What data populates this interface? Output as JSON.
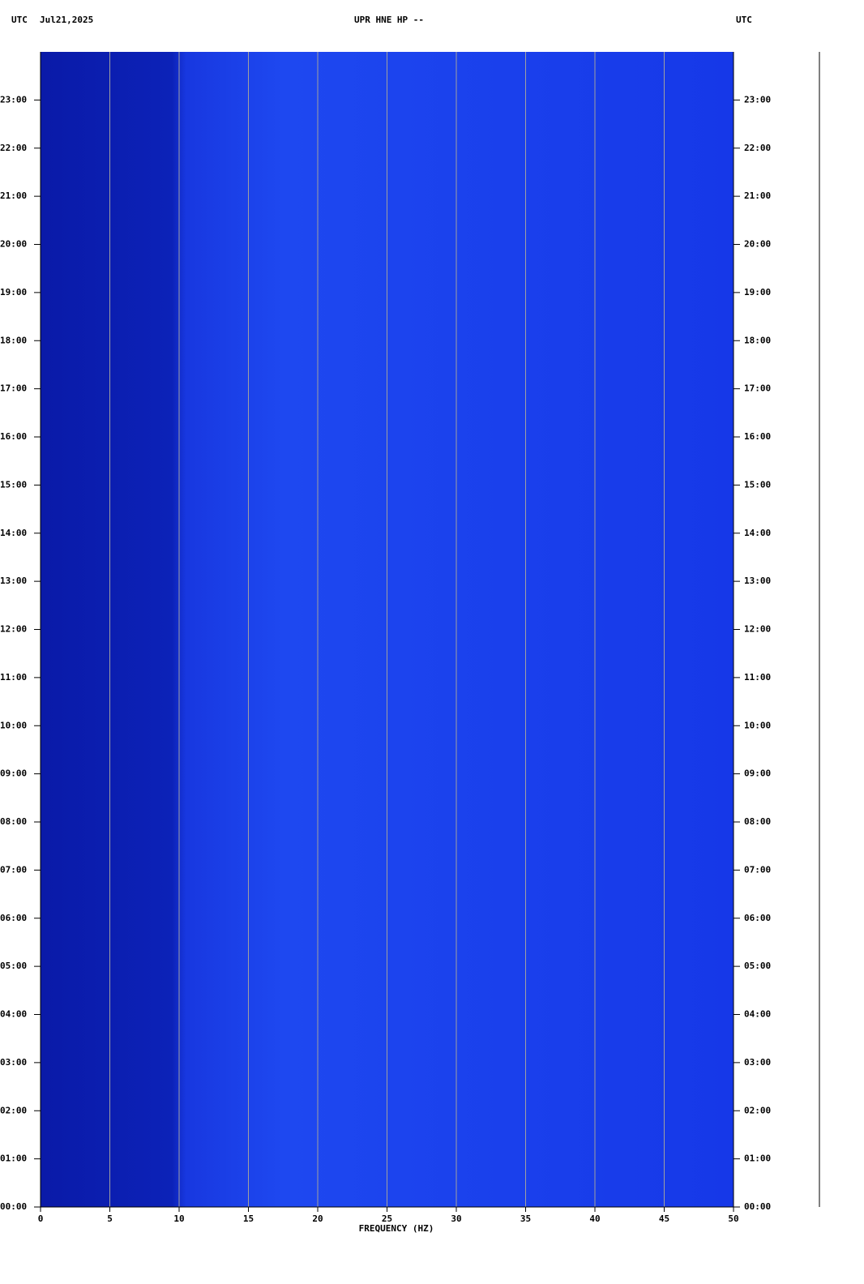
{
  "chart_data": {
    "type": "spectrogram",
    "title": "UPR HNE HP --",
    "timezone_label": "UTC",
    "date": "Jul21,2025",
    "xlabel": "FREQUENCY (HZ)",
    "xlim": [
      0,
      50
    ],
    "xticks": [
      0,
      5,
      10,
      15,
      20,
      25,
      30,
      35,
      40,
      45,
      50
    ],
    "ylim": [
      0,
      24
    ],
    "yticks": [
      {
        "value": 0,
        "label": "00:00"
      },
      {
        "value": 1,
        "label": "01:00"
      },
      {
        "value": 2,
        "label": "02:00"
      },
      {
        "value": 3,
        "label": "03:00"
      },
      {
        "value": 4,
        "label": "04:00"
      },
      {
        "value": 5,
        "label": "05:00"
      },
      {
        "value": 6,
        "label": "06:00"
      },
      {
        "value": 7,
        "label": "07:00"
      },
      {
        "value": 8,
        "label": "08:00"
      },
      {
        "value": 9,
        "label": "09:00"
      },
      {
        "value": 10,
        "label": "10:00"
      },
      {
        "value": 11,
        "label": "11:00"
      },
      {
        "value": 12,
        "label": "12:00"
      },
      {
        "value": 13,
        "label": "13:00"
      },
      {
        "value": 14,
        "label": "14:00"
      },
      {
        "value": 15,
        "label": "15:00"
      },
      {
        "value": 16,
        "label": "16:00"
      },
      {
        "value": 17,
        "label": "17:00"
      },
      {
        "value": 18,
        "label": "18:00"
      },
      {
        "value": 19,
        "label": "19:00"
      },
      {
        "value": 20,
        "label": "20:00"
      },
      {
        "value": 21,
        "label": "21:00"
      },
      {
        "value": 22,
        "label": "22:00"
      },
      {
        "value": 23,
        "label": "23:00"
      }
    ],
    "grid": true,
    "color": "#1a3cf0"
  }
}
